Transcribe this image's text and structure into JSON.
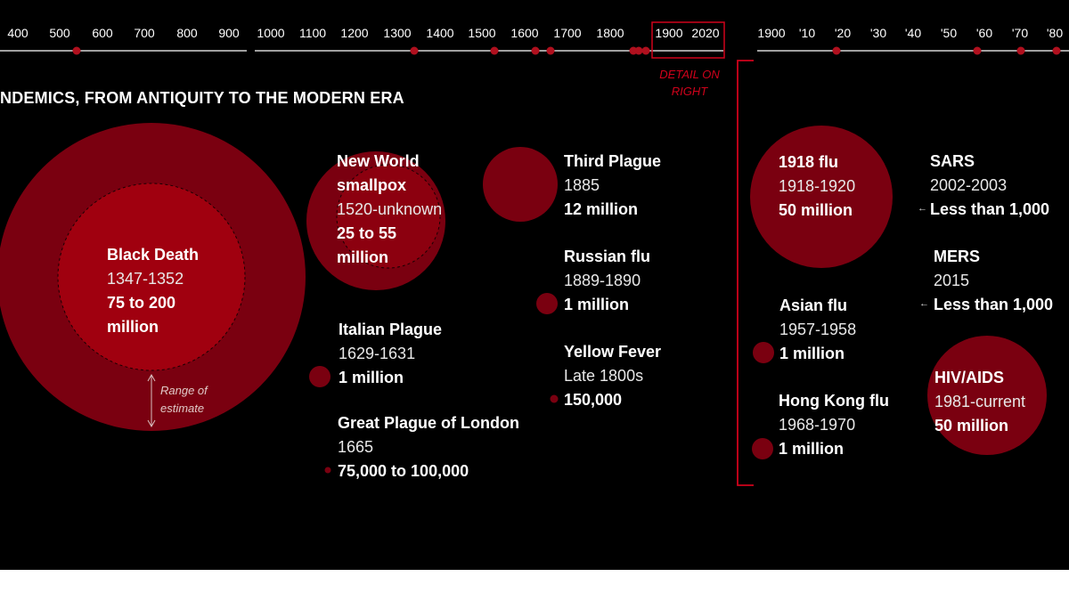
{
  "heading": "NDEMICS, FROM ANTIQUITY TO THE MODERN ERA",
  "timeline": {
    "main_ticks": [
      "400",
      "500",
      "600",
      "700",
      "800",
      "900",
      "1000",
      "1100",
      "1200",
      "1300",
      "1400",
      "1500",
      "1600",
      "1700",
      "1800",
      "1900",
      "2020"
    ],
    "detail_ticks": [
      "1900",
      "'10",
      "'20",
      "'30",
      "'40",
      "'50",
      "'60",
      "'70",
      "'80"
    ],
    "detail_note": "DETAIL ON RIGHT"
  },
  "range_note": "Range of estimate",
  "pandemics": [
    {
      "key": "black-death",
      "name": "Black Death",
      "years": "1347-1352",
      "deaths": "75 to 200 million"
    },
    {
      "key": "new-world-smallpox",
      "name": "New World smallpox",
      "years": "1520-unknown",
      "deaths": "25 to 55 million"
    },
    {
      "key": "italian-plague",
      "name": "Italian Plague",
      "years": "1629-1631",
      "deaths": "1 million"
    },
    {
      "key": "great-plague-london",
      "name": "Great Plague of London",
      "years": "1665",
      "deaths": "75,000 to 100,000"
    },
    {
      "key": "third-plague",
      "name": "Third Plague",
      "years": "1885",
      "deaths": "12 million"
    },
    {
      "key": "russian-flu",
      "name": "Russian flu",
      "years": "1889-1890",
      "deaths": "1 million"
    },
    {
      "key": "yellow-fever",
      "name": "Yellow Fever",
      "years": "Late 1800s",
      "deaths": "150,000"
    },
    {
      "key": "flu-1918",
      "name": "1918 flu",
      "years": "1918-1920",
      "deaths": "50 million"
    },
    {
      "key": "asian-flu",
      "name": "Asian flu",
      "years": "1957-1958",
      "deaths": "1 million"
    },
    {
      "key": "hong-kong-flu",
      "name": "Hong Kong flu",
      "years": "1968-1970",
      "deaths": "1 million"
    },
    {
      "key": "sars",
      "name": "SARS",
      "years": "2002-2003",
      "deaths": "Less than 1,000"
    },
    {
      "key": "mers",
      "name": "MERS",
      "years": "2015",
      "deaths": "Less than 1,000"
    },
    {
      "key": "hiv-aids",
      "name": "HIV/AIDS",
      "years": "1981-current",
      "deaths": "50 million"
    }
  ],
  "colors": {
    "background": "#000000",
    "bubble": "#7a0010",
    "bubble_inner": "#a0000f",
    "marker": "#b0101e",
    "highlight": "#d0021b"
  }
}
